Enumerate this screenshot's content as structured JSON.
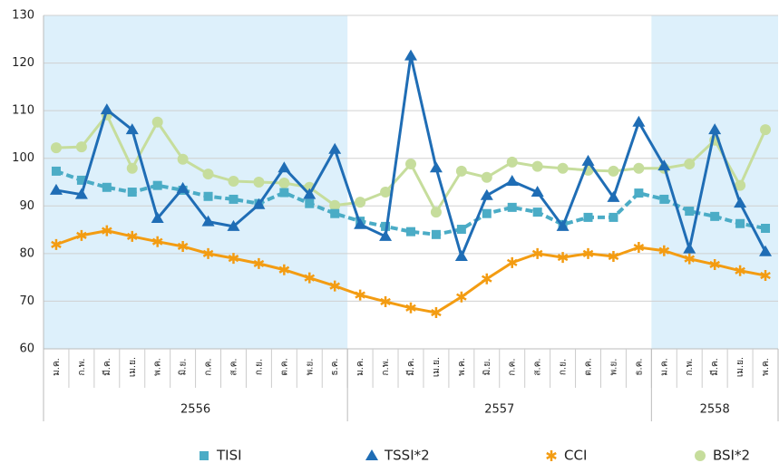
{
  "chart_data": {
    "type": "line",
    "categories": [
      "ม.ค.",
      "ก.พ.",
      "มี.ค.",
      "เม.ย.",
      "พ.ค.",
      "มิ.ย.",
      "ก.ค.",
      "ส.ค.",
      "ก.ย.",
      "ต.ค.",
      "พ.ย.",
      "ธ.ค.",
      "ม.ค.",
      "ก.พ.",
      "มี.ค.",
      "เม.ย.",
      "พ.ค.",
      "มิ.ย.",
      "ก.ค.",
      "ส.ค.",
      "ก.ย.",
      "ต.ค.",
      "พ.ย.",
      "ธ.ค.",
      "ม.ค.",
      "ก.พ.",
      "มี.ค.",
      "เม.ย.",
      "พ.ค."
    ],
    "x_groups": [
      "2556",
      "2557",
      "2558"
    ],
    "series": [
      {
        "name": "TISI",
        "color": "#4bacc6",
        "marker": "square",
        "values": [
          97.3,
          95.4,
          93.9,
          92.9,
          94.3,
          93.3,
          92,
          91.4,
          90.5,
          92.8,
          90.5,
          88.4,
          86.8,
          85.7,
          84.6,
          84,
          85.1,
          88.4,
          89.7,
          88.7,
          86.1,
          87.6,
          87.6,
          92.7,
          91.4,
          88.9,
          87.8,
          86.3,
          85.3
        ]
      },
      {
        "name": "TSSI*2",
        "color": "#1f6db5",
        "marker": "triangle",
        "values": [
          93.3,
          92.4,
          110.2,
          106,
          87.4,
          93.7,
          86.7,
          85.7,
          90.3,
          98,
          92.4,
          101.9,
          86.1,
          83.6,
          121.5,
          98,
          79.4,
          92.2,
          95.2,
          92.9,
          85.7,
          99.4,
          91.8,
          107.6,
          98.4,
          81,
          106,
          90.6,
          80.4
        ]
      },
      {
        "name": "CCI",
        "color": "#f39c12",
        "marker": "asterisk",
        "values": [
          81.9,
          83.8,
          84.8,
          83.6,
          82.5,
          81.5,
          80,
          79,
          77.9,
          76.6,
          74.9,
          73.2,
          71.3,
          69.9,
          68.6,
          67.6,
          70.9,
          74.7,
          78.1,
          80,
          79.2,
          80,
          79.4,
          81.3,
          80.6,
          78.9,
          77.7,
          76.4,
          75.4
        ]
      },
      {
        "name": "BSI*2",
        "color": "#c6dd9c",
        "marker": "circle",
        "values": [
          102.2,
          102.4,
          109.1,
          97.9,
          107.6,
          99.8,
          96.7,
          95.2,
          95,
          94.8,
          93.9,
          90.1,
          90.8,
          92.9,
          98.8,
          88.7,
          97.3,
          96,
          99.2,
          98.3,
          97.9,
          97.5,
          97.3,
          97.9,
          97.9,
          98.8,
          103.8,
          94.3,
          106
        ]
      }
    ],
    "ylim": [
      60,
      130
    ],
    "yticks": [
      60,
      70,
      80,
      90,
      100,
      110,
      120,
      130
    ],
    "grid": true
  }
}
